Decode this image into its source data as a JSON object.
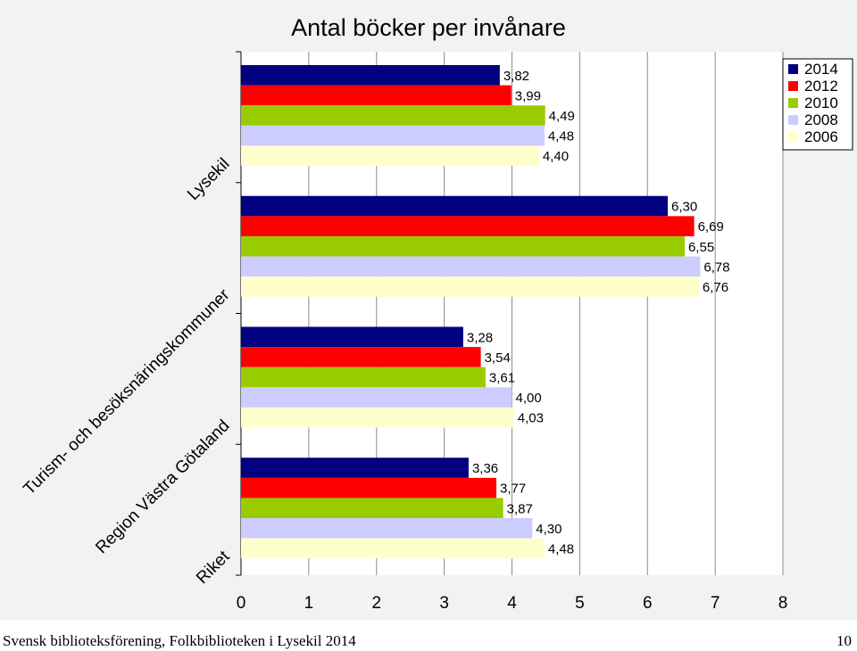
{
  "chart_data": {
    "type": "bar",
    "orientation": "horizontal",
    "title": "Antal böcker per invånare",
    "categories": [
      "Lysekil",
      "Turism- och besöksnäringskommuner",
      "Region Västra Götaland",
      "Riket"
    ],
    "series": [
      {
        "name": "2014",
        "color": "#000080",
        "values": [
          3.82,
          6.3,
          3.28,
          3.36
        ],
        "labels": [
          "3,82",
          "6,30",
          "3,28",
          "3,36"
        ]
      },
      {
        "name": "2012",
        "color": "#ff0000",
        "values": [
          3.99,
          6.69,
          3.54,
          3.77
        ],
        "labels": [
          "3,99",
          "6,69",
          "3,54",
          "3,77"
        ]
      },
      {
        "name": "2010",
        "color": "#99cc00",
        "values": [
          4.49,
          6.55,
          3.61,
          3.87
        ],
        "labels": [
          "4,49",
          "6,55",
          "3,61",
          "3,87"
        ]
      },
      {
        "name": "2008",
        "color": "#ccccff",
        "values": [
          4.48,
          6.78,
          4.0,
          4.3
        ],
        "labels": [
          "4,48",
          "6,78",
          "4,00",
          "4,30"
        ]
      },
      {
        "name": "2006",
        "color": "#ffffcc",
        "values": [
          4.4,
          6.76,
          4.03,
          4.48
        ],
        "labels": [
          "4,40",
          "6,76",
          "4,03",
          "4,48"
        ]
      }
    ],
    "xlim": [
      0,
      8
    ],
    "x_ticks": [
      "0",
      "1",
      "2",
      "3",
      "4",
      "5",
      "6",
      "7",
      "8"
    ],
    "grid": true,
    "legend_position": "top-right"
  },
  "footer": {
    "source": "Svensk biblioteksförening, Folkbiblioteken i Lysekil 2014",
    "page": "10"
  }
}
